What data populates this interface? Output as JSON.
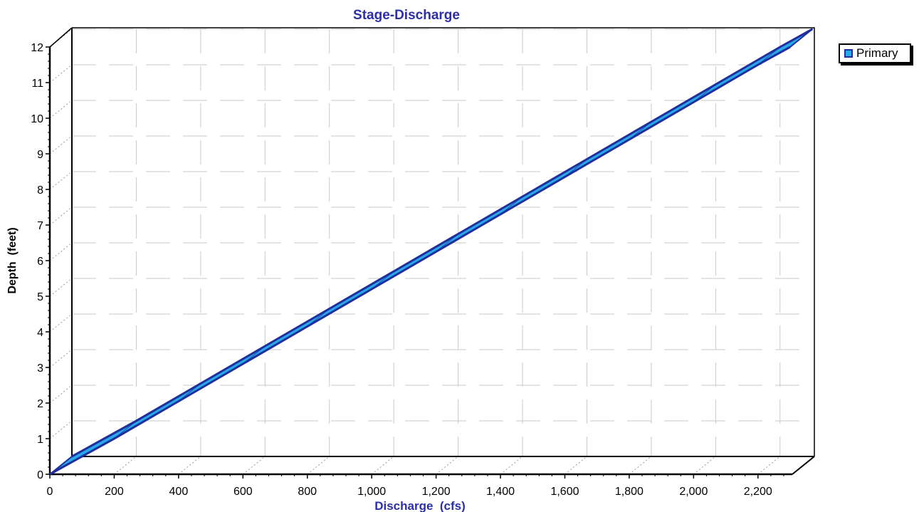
{
  "chart_data": {
    "type": "line",
    "title": "Stage-Discharge",
    "xlabel": "Discharge  (cfs)",
    "ylabel": "Depth  (feet)",
    "xlim": [
      0,
      2300
    ],
    "ylim": [
      0,
      12
    ],
    "x_ticks": [
      "0",
      "200",
      "400",
      "600",
      "800",
      "1,000",
      "1,200",
      "1,400",
      "1,600",
      "1,800",
      "2,000",
      "2,200"
    ],
    "x_tick_values": [
      0,
      200,
      400,
      600,
      800,
      1000,
      1200,
      1400,
      1600,
      1800,
      2000,
      2200
    ],
    "y_ticks": [
      "0",
      "1",
      "2",
      "3",
      "4",
      "5",
      "6",
      "7",
      "8",
      "9",
      "10",
      "11",
      "12"
    ],
    "y_tick_values": [
      0,
      1,
      2,
      3,
      4,
      5,
      6,
      7,
      8,
      9,
      10,
      11,
      12
    ],
    "grid": true,
    "legend_position": "top-right",
    "series": [
      {
        "name": "Primary",
        "color": "#27a9e8",
        "edge_color": "#1f2fa0",
        "x": [
          0,
          200,
          400,
          600,
          800,
          1000,
          1200,
          1400,
          1600,
          1800,
          2000,
          2200,
          2300
        ],
        "y": [
          0,
          1.0,
          2.05,
          3.1,
          4.15,
          5.2,
          6.25,
          7.3,
          8.35,
          9.4,
          10.45,
          11.5,
          12.0
        ]
      }
    ]
  }
}
